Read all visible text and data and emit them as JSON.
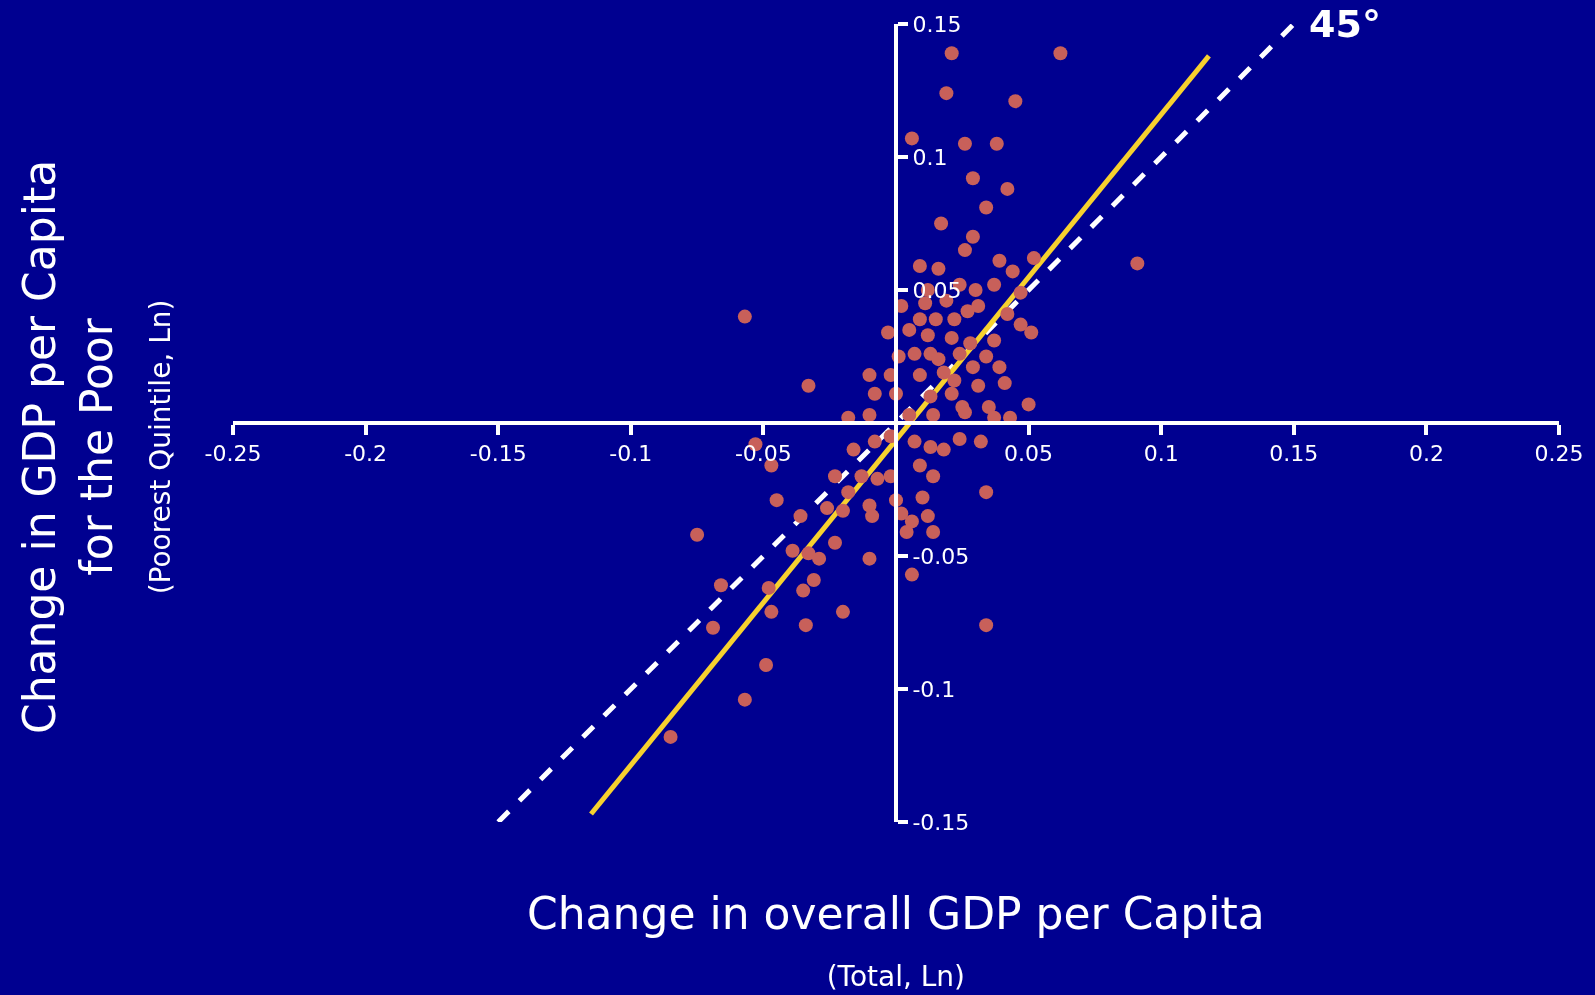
{
  "chart_data": {
    "type": "scatter",
    "xlabel": "Change in overall GDP per Capita\n(Total, Ln)",
    "ylabel": "Change in GDP per Capita\nfor the Poor\n(Poorest Quintile, Ln)",
    "xlim": [
      -0.25,
      0.25
    ],
    "ylim": [
      -0.15,
      0.15
    ],
    "xticks": [
      -0.25,
      -0.2,
      -0.15,
      -0.1,
      -0.05,
      {
        "value": 0,
        "label": null
      },
      0.05,
      0.1,
      0.15,
      0.2,
      0.25
    ],
    "yticks": [
      -0.15,
      -0.1,
      -0.05,
      {
        "value": 0,
        "label": null
      },
      0.05,
      0.1,
      0.15
    ],
    "grid": false,
    "marker": "circle",
    "annotations": [
      "45°"
    ],
    "series": [
      {
        "type": "line",
        "color": "#ffffff",
        "line_style": "dashed",
        "marker": "none",
        "x": [
          -0.15,
          0.15
        ],
        "values": [
          -0.15,
          0.15
        ]
      },
      {
        "type": "line",
        "color": "#f7d12e",
        "line_style": "solid",
        "marker": "none",
        "x": [
          -0.115,
          0.118
        ],
        "values": [
          -0.147,
          0.138
        ]
      },
      {
        "color": "#c8605a",
        "x": [
          0.062,
          0.021,
          0.019,
          0.045,
          0.006,
          0.026,
          0.038,
          0.029,
          0.042,
          0.034,
          0.091,
          0.017,
          0.029,
          0.026,
          0.039,
          0.052,
          0.009,
          0.016,
          0.024,
          0.037,
          0.044,
          0.012,
          0.002,
          0.011,
          0.019,
          0.03,
          0.047,
          -0.057,
          0.009,
          0.015,
          0.022,
          0.027,
          0.031,
          0.042,
          0.047,
          0.051,
          -0.003,
          0.005,
          0.012,
          0.021,
          0.028,
          0.037,
          0.007,
          0.013,
          0.016,
          0.024,
          0.034,
          0.039,
          0.029,
          0.001,
          -0.01,
          -0.002,
          0.009,
          0.018,
          0.022,
          0.031,
          0.041,
          -0.033,
          -0.008,
          0.0,
          0.013,
          0.021,
          0.025,
          0.05,
          0.035,
          -0.018,
          -0.01,
          0.005,
          0.014,
          0.026,
          0.037,
          0.043,
          -0.053,
          -0.047,
          -0.045,
          -0.016,
          -0.008,
          -0.002,
          0.007,
          0.013,
          0.018,
          0.024,
          0.032,
          -0.023,
          -0.013,
          -0.007,
          -0.002,
          0.009,
          0.014,
          -0.018,
          0.0,
          0.01,
          0.034,
          -0.026,
          -0.01,
          -0.02,
          -0.009,
          0.002,
          0.006,
          0.012,
          0.014,
          0.004,
          -0.036,
          -0.075,
          -0.023,
          -0.039,
          -0.033,
          -0.029,
          -0.01,
          0.006,
          -0.031,
          -0.048,
          -0.035,
          -0.066,
          -0.02,
          -0.047,
          -0.069,
          -0.034,
          0.034,
          -0.049,
          -0.057,
          -0.085
        ],
        "values": [
          0.139,
          0.139,
          0.124,
          0.121,
          0.107,
          0.105,
          0.105,
          0.092,
          0.088,
          0.081,
          0.06,
          0.075,
          0.07,
          0.065,
          0.061,
          0.062,
          0.059,
          0.058,
          0.052,
          0.052,
          0.057,
          0.05,
          0.044,
          0.045,
          0.046,
          0.05,
          0.049,
          0.04,
          0.039,
          0.039,
          0.039,
          0.042,
          0.044,
          0.041,
          0.037,
          0.034,
          0.034,
          0.035,
          0.033,
          0.032,
          0.03,
          0.031,
          0.026,
          0.026,
          0.024,
          0.026,
          0.025,
          0.021,
          0.021,
          0.025,
          0.018,
          0.018,
          0.018,
          0.019,
          0.016,
          0.014,
          0.015,
          0.014,
          0.011,
          0.011,
          0.01,
          0.011,
          0.006,
          0.007,
          0.006,
          0.002,
          0.003,
          0.003,
          0.003,
          0.004,
          0.002,
          0.002,
          -0.008,
          -0.016,
          -0.029,
          -0.01,
          -0.007,
          -0.005,
          -0.007,
          -0.009,
          -0.01,
          -0.006,
          -0.007,
          -0.02,
          -0.02,
          -0.021,
          -0.02,
          -0.016,
          -0.02,
          -0.026,
          -0.029,
          -0.028,
          -0.026,
          -0.032,
          -0.031,
          -0.033,
          -0.035,
          -0.034,
          -0.037,
          -0.035,
          -0.041,
          -0.041,
          -0.035,
          -0.042,
          -0.045,
          -0.048,
          -0.049,
          -0.051,
          -0.051,
          -0.057,
          -0.059,
          -0.062,
          -0.063,
          -0.061,
          -0.071,
          -0.071,
          -0.077,
          -0.076,
          -0.076,
          -0.091,
          -0.104,
          -0.118
        ]
      }
    ]
  }
}
